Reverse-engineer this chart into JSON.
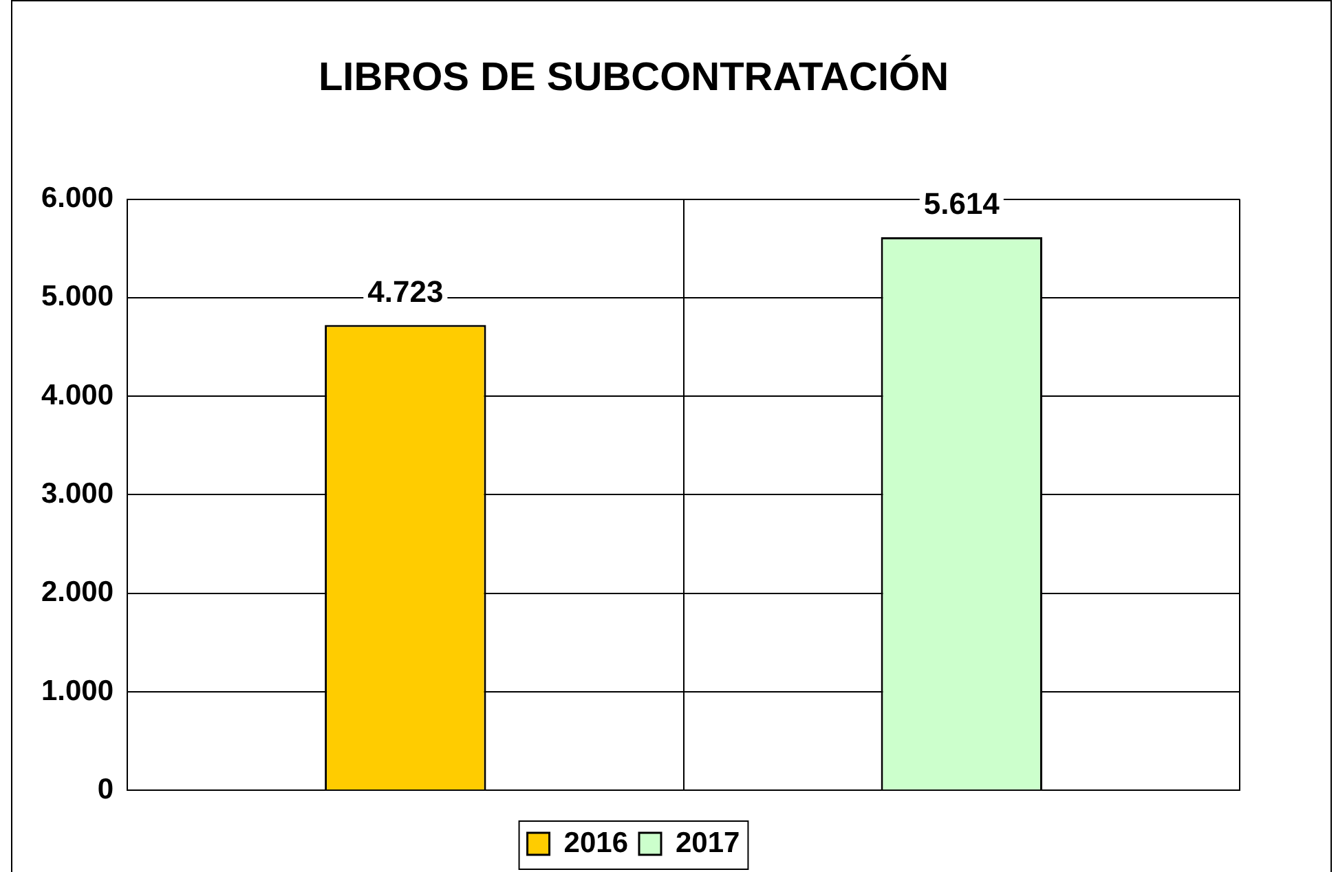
{
  "chart_data": {
    "type": "bar",
    "title": "LIBROS DE SUBCONTRATACIÓN",
    "categories": [
      null,
      null
    ],
    "series": [
      {
        "name": "2016",
        "color": "#ffcc00",
        "values": [
          4723,
          null
        ],
        "value_labels": [
          "4.723",
          null
        ]
      },
      {
        "name": "2017",
        "color": "#ccffcc",
        "values": [
          null,
          5614
        ],
        "value_labels": [
          null,
          "5.614"
        ]
      }
    ],
    "ylim": [
      0,
      6000
    ],
    "yticks": [
      {
        "value": 0,
        "label": "0"
      },
      {
        "value": 1000,
        "label": "1.000"
      },
      {
        "value": 2000,
        "label": "2.000"
      },
      {
        "value": 3000,
        "label": "3.000"
      },
      {
        "value": 4000,
        "label": "4.000"
      },
      {
        "value": 5000,
        "label": "5.000"
      },
      {
        "value": 6000,
        "label": "6.000"
      }
    ],
    "grid": true,
    "legend": "bottom"
  }
}
